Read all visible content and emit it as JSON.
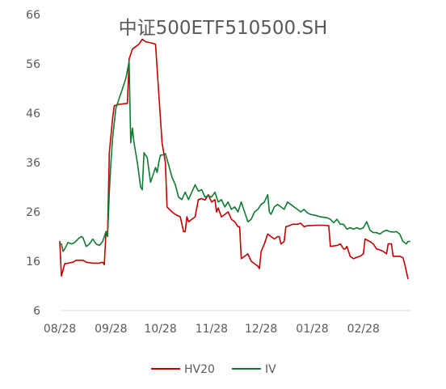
{
  "chart_data": {
    "type": "line",
    "title": "中证500ETF510500.SH",
    "xlabel": "",
    "ylabel": "",
    "ylim": [
      6,
      66
    ],
    "yticks": [
      6,
      16,
      26,
      36,
      46,
      56,
      66
    ],
    "xlim": [
      0,
      213
    ],
    "xticks": [
      {
        "label": "08/28",
        "x": 0
      },
      {
        "label": "09/28",
        "x": 31
      },
      {
        "label": "10/28",
        "x": 61
      },
      {
        "label": "11/28",
        "x": 92
      },
      {
        "label": "12/28",
        "x": 122
      },
      {
        "label": "01/28",
        "x": 153
      },
      {
        "label": "02/28",
        "x": 184
      }
    ],
    "grid": false,
    "legend_position": "bottom",
    "series": [
      {
        "name": "HV20",
        "color": "#c00000",
        "points": [
          [
            0,
            20
          ],
          [
            1,
            13
          ],
          [
            3,
            15.5
          ],
          [
            5,
            15.6
          ],
          [
            8,
            15.8
          ],
          [
            10,
            16.2
          ],
          [
            14,
            16.2
          ],
          [
            16,
            15.8
          ],
          [
            20,
            15.6
          ],
          [
            24,
            15.6
          ],
          [
            26,
            15.8
          ],
          [
            27,
            15.3
          ],
          [
            28,
            22
          ],
          [
            29,
            22
          ],
          [
            30,
            38
          ],
          [
            32,
            45
          ],
          [
            33,
            47.5
          ],
          [
            36,
            47.8
          ],
          [
            41,
            48
          ],
          [
            42,
            57
          ],
          [
            44,
            59
          ],
          [
            48,
            60
          ],
          [
            50,
            61
          ],
          [
            52,
            60.5
          ],
          [
            56,
            60.2
          ],
          [
            58,
            60
          ],
          [
            60,
            50
          ],
          [
            62,
            40
          ],
          [
            64,
            36
          ],
          [
            65,
            27
          ],
          [
            68,
            26
          ],
          [
            70,
            25.5
          ],
          [
            73,
            25
          ],
          [
            75,
            22
          ],
          [
            76,
            22
          ],
          [
            77,
            25
          ],
          [
            78,
            24
          ],
          [
            80,
            24.5
          ],
          [
            82,
            25
          ],
          [
            84,
            28.5
          ],
          [
            86,
            28.7
          ],
          [
            88,
            28.4
          ],
          [
            90,
            29.5
          ],
          [
            92,
            28
          ],
          [
            94,
            28.5
          ],
          [
            95,
            26
          ],
          [
            96,
            26.8
          ],
          [
            98,
            25
          ],
          [
            100,
            25.5
          ],
          [
            102,
            26
          ],
          [
            104,
            24.5
          ],
          [
            106,
            24
          ],
          [
            108,
            23
          ],
          [
            109,
            23
          ],
          [
            110,
            16.5
          ],
          [
            112,
            17
          ],
          [
            114,
            17.5
          ],
          [
            116,
            16
          ],
          [
            118,
            15.5
          ],
          [
            120,
            15
          ],
          [
            121,
            14.5
          ],
          [
            122,
            18
          ],
          [
            124,
            19.5
          ],
          [
            126,
            21.5
          ],
          [
            128,
            21
          ],
          [
            130,
            20.5
          ],
          [
            132,
            21
          ],
          [
            133,
            21
          ],
          [
            134,
            19.5
          ],
          [
            136,
            20
          ],
          [
            137,
            23
          ],
          [
            139,
            23.2
          ],
          [
            141,
            23.5
          ],
          [
            144,
            23.5
          ],
          [
            146,
            23.7
          ],
          [
            148,
            23
          ],
          [
            150,
            23.2
          ],
          [
            156,
            23.3
          ],
          [
            160,
            23.3
          ],
          [
            163,
            23.2
          ],
          [
            164,
            19
          ],
          [
            168,
            19.2
          ],
          [
            170,
            19.5
          ],
          [
            172,
            18.5
          ],
          [
            173,
            18.5
          ],
          [
            174,
            19
          ],
          [
            176,
            17
          ],
          [
            178,
            16.5
          ],
          [
            180,
            16.8
          ],
          [
            182,
            17
          ],
          [
            184,
            17.5
          ],
          [
            185,
            20.5
          ],
          [
            188,
            20
          ],
          [
            190,
            19.5
          ],
          [
            192,
            18.5
          ],
          [
            194,
            18.3
          ],
          [
            196,
            18
          ],
          [
            198,
            17.5
          ],
          [
            199,
            19.5
          ],
          [
            201,
            19.5
          ],
          [
            202,
            17
          ],
          [
            206,
            17
          ],
          [
            208,
            16.7
          ],
          [
            209,
            15.5
          ],
          [
            211,
            12.5
          ]
        ]
      },
      {
        "name": "IV",
        "color": "#0e7a32",
        "points": [
          [
            0,
            19.5
          ],
          [
            1,
            19.5
          ],
          [
            2,
            18
          ],
          [
            3,
            18.5
          ],
          [
            5,
            19.8
          ],
          [
            7,
            19.5
          ],
          [
            9,
            19.8
          ],
          [
            11,
            20.5
          ],
          [
            13,
            21
          ],
          [
            14,
            20.8
          ],
          [
            16,
            19
          ],
          [
            18,
            19.5
          ],
          [
            20,
            20.5
          ],
          [
            22,
            19.5
          ],
          [
            24,
            19.2
          ],
          [
            26,
            20
          ],
          [
            28,
            22
          ],
          [
            29,
            21
          ],
          [
            30,
            30
          ],
          [
            31,
            36
          ],
          [
            32,
            41
          ],
          [
            34,
            47
          ],
          [
            36,
            49
          ],
          [
            40,
            53
          ],
          [
            42,
            56.5
          ],
          [
            43,
            40
          ],
          [
            44,
            43
          ],
          [
            45,
            40
          ],
          [
            47,
            36
          ],
          [
            49,
            31
          ],
          [
            50,
            30.5
          ],
          [
            51,
            38
          ],
          [
            53,
            37
          ],
          [
            55,
            32
          ],
          [
            56,
            33
          ],
          [
            57,
            34
          ],
          [
            58,
            35
          ],
          [
            59,
            34
          ],
          [
            60,
            36
          ],
          [
            61,
            37.5
          ],
          [
            62,
            37.5
          ],
          [
            64,
            37.8
          ],
          [
            66,
            35.5
          ],
          [
            68,
            33
          ],
          [
            70,
            31.5
          ],
          [
            72,
            29
          ],
          [
            74,
            28.5
          ],
          [
            76,
            30
          ],
          [
            78,
            28.5
          ],
          [
            80,
            30
          ],
          [
            82,
            31.5
          ],
          [
            84,
            30.2
          ],
          [
            86,
            30.5
          ],
          [
            88,
            29
          ],
          [
            90,
            29.3
          ],
          [
            92,
            29
          ],
          [
            94,
            30
          ],
          [
            96,
            28
          ],
          [
            98,
            28.5
          ],
          [
            100,
            27
          ],
          [
            102,
            28
          ],
          [
            104,
            26.5
          ],
          [
            106,
            27
          ],
          [
            108,
            26
          ],
          [
            110,
            28
          ],
          [
            112,
            26
          ],
          [
            113,
            25
          ],
          [
            114,
            24
          ],
          [
            116,
            24.5
          ],
          [
            118,
            26
          ],
          [
            120,
            26.5
          ],
          [
            122,
            27.5
          ],
          [
            124,
            28
          ],
          [
            126,
            29.5
          ],
          [
            127,
            26
          ],
          [
            128,
            25.5
          ],
          [
            130,
            27
          ],
          [
            132,
            27.5
          ],
          [
            134,
            27
          ],
          [
            136,
            26.5
          ],
          [
            138,
            28
          ],
          [
            140,
            27.5
          ],
          [
            142,
            27
          ],
          [
            144,
            26.5
          ],
          [
            146,
            26
          ],
          [
            148,
            26.5
          ],
          [
            150,
            25.8
          ],
          [
            152,
            25.5
          ],
          [
            155,
            25.3
          ],
          [
            158,
            25
          ],
          [
            162,
            24.8
          ],
          [
            164,
            24.5
          ],
          [
            166,
            23.8
          ],
          [
            168,
            24.5
          ],
          [
            170,
            23.5
          ],
          [
            172,
            23.5
          ],
          [
            174,
            22.5
          ],
          [
            176,
            22.8
          ],
          [
            178,
            22.5
          ],
          [
            180,
            22.8
          ],
          [
            182,
            22.5
          ],
          [
            184,
            22.8
          ],
          [
            186,
            24
          ],
          [
            188,
            22.3
          ],
          [
            190,
            21.8
          ],
          [
            192,
            21.8
          ],
          [
            194,
            21.5
          ],
          [
            196,
            22
          ],
          [
            198,
            22.3
          ],
          [
            200,
            22
          ],
          [
            202,
            21.9
          ],
          [
            204,
            22
          ],
          [
            206,
            21.5
          ],
          [
            208,
            20
          ],
          [
            210,
            19.5
          ],
          [
            211,
            20
          ],
          [
            212,
            20
          ]
        ]
      }
    ]
  }
}
